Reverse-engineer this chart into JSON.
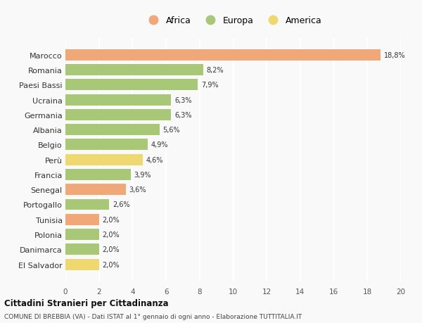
{
  "countries": [
    "Marocco",
    "Romania",
    "Paesi Bassi",
    "Ucraina",
    "Germania",
    "Albania",
    "Belgio",
    "Perù",
    "Francia",
    "Senegal",
    "Portogallo",
    "Tunisia",
    "Polonia",
    "Danimarca",
    "El Salvador"
  ],
  "values": [
    18.8,
    8.2,
    7.9,
    6.3,
    6.3,
    5.6,
    4.9,
    4.6,
    3.9,
    3.6,
    2.6,
    2.0,
    2.0,
    2.0,
    2.0
  ],
  "labels": [
    "18,8%",
    "8,2%",
    "7,9%",
    "6,3%",
    "6,3%",
    "5,6%",
    "4,9%",
    "4,6%",
    "3,9%",
    "3,6%",
    "2,6%",
    "2,0%",
    "2,0%",
    "2,0%",
    "2,0%"
  ],
  "continents": [
    "Africa",
    "Europa",
    "Europa",
    "Europa",
    "Europa",
    "Europa",
    "Europa",
    "America",
    "Europa",
    "Africa",
    "Europa",
    "Africa",
    "Europa",
    "Europa",
    "America"
  ],
  "colors": {
    "Africa": "#F0A878",
    "Europa": "#A8C878",
    "America": "#F0D870"
  },
  "xlim": [
    0,
    20
  ],
  "xticks": [
    0,
    2,
    4,
    6,
    8,
    10,
    12,
    14,
    16,
    18,
    20
  ],
  "title": "Cittadini Stranieri per Cittadinanza",
  "subtitle": "COMUNE DI BREBBIA (VA) - Dati ISTAT al 1° gennaio di ogni anno - Elaborazione TUTTITALIA.IT",
  "background_color": "#f9f9f9",
  "grid_color": "#ffffff",
  "bar_height": 0.75
}
